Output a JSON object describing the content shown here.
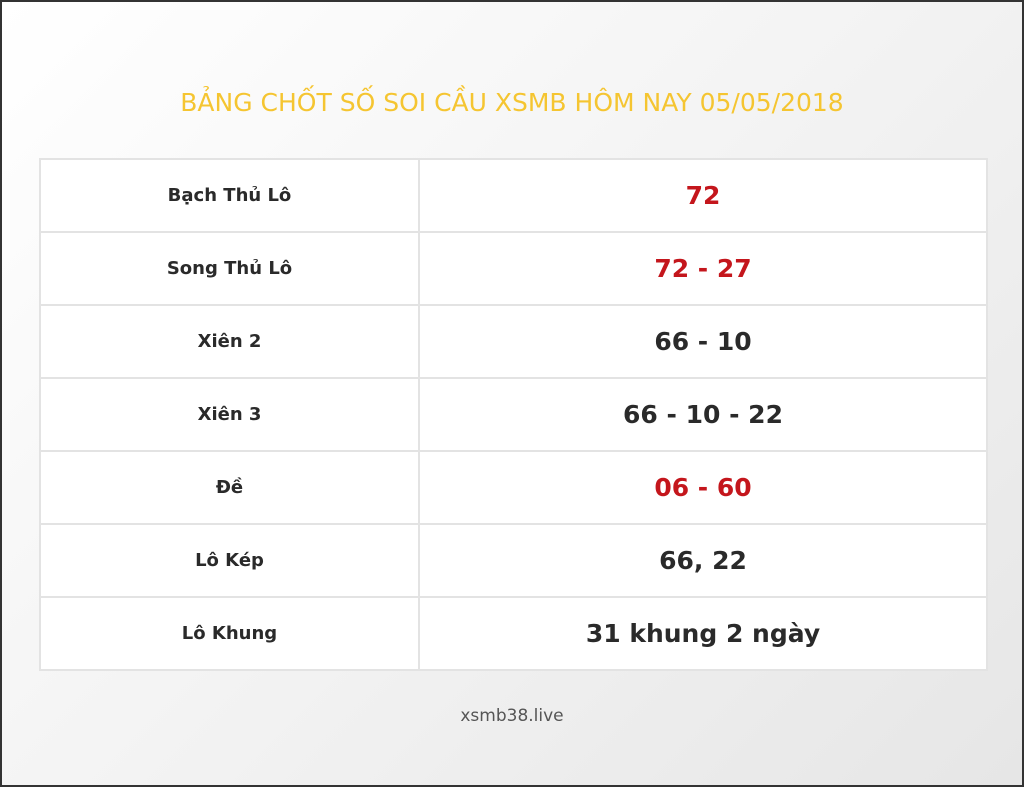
{
  "title": "BẢNG CHỐT SỐ SOI CẦU XSMB HÔM NAY 05/05/2018",
  "rows": [
    {
      "label": "Bạch Thủ Lô",
      "value": "72",
      "highlight": true
    },
    {
      "label": "Song Thủ Lô",
      "value": "72 - 27",
      "highlight": true
    },
    {
      "label": "Xiên 2",
      "value": "66 - 10",
      "highlight": false
    },
    {
      "label": "Xiên 3",
      "value": "66 - 10 - 22",
      "highlight": false
    },
    {
      "label": "Đề",
      "value": "06 - 60",
      "highlight": true
    },
    {
      "label": "Lô Kép",
      "value": "66, 22",
      "highlight": false
    },
    {
      "label": "Lô Khung",
      "value": "31 khung 2 ngày",
      "highlight": false
    }
  ],
  "footer": "xsmb38.live",
  "colors": {
    "title": "#f5c531",
    "highlight": "#c4161c",
    "text": "#2a2a2a"
  }
}
